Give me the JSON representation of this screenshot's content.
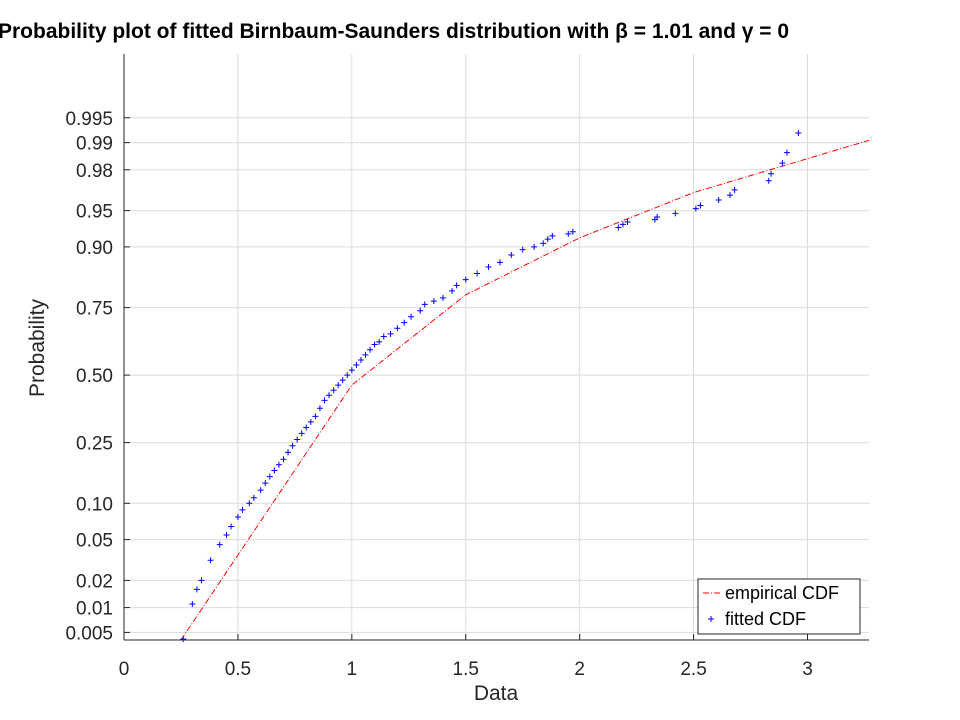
{
  "chart_data": {
    "type": "scatter",
    "title": "Probability plot of fitted Birnbaum-Saunders distribution with β = 1.01 and γ = 0",
    "xlabel": "Data",
    "ylabel": "Probability",
    "xlim": [
      0,
      3.27
    ],
    "x_ticks": [
      0,
      0.5,
      1,
      1.5,
      2,
      2.5,
      3
    ],
    "x_tick_labels": [
      "0",
      "0.5",
      "1",
      "1.5",
      "2",
      "2.5",
      "3"
    ],
    "y_scale": "normal-probability",
    "y_ticks": [
      0.005,
      0.01,
      0.02,
      0.05,
      0.1,
      0.25,
      0.5,
      0.75,
      0.9,
      0.95,
      0.98,
      0.99,
      0.995
    ],
    "y_tick_labels": [
      "0.005",
      "0.01",
      "0.02",
      "0.05",
      "0.10",
      "0.25",
      "0.50",
      "0.75",
      "0.90",
      "0.95",
      "0.98",
      "0.99",
      "0.995"
    ],
    "grid": true,
    "legend_position": "bottom-right",
    "series": [
      {
        "name": "empirical CDF",
        "style": "dash-dot line",
        "color": "#ff0000",
        "x": [
          0.25,
          1.0,
          1.5,
          2.0,
          2.5,
          3.27
        ],
        "y": [
          0.004,
          0.46,
          0.789,
          0.915,
          0.966,
          0.9906
        ]
      },
      {
        "name": "fitted CDF",
        "style": "plus markers",
        "color": "#0000ff",
        "x": [
          0.26,
          0.3,
          0.32,
          0.34,
          0.38,
          0.42,
          0.45,
          0.47,
          0.5,
          0.52,
          0.55,
          0.57,
          0.6,
          0.62,
          0.64,
          0.66,
          0.68,
          0.7,
          0.72,
          0.74,
          0.76,
          0.78,
          0.8,
          0.82,
          0.84,
          0.86,
          0.88,
          0.9,
          0.92,
          0.94,
          0.96,
          0.98,
          1.0,
          1.02,
          1.04,
          1.06,
          1.08,
          1.1,
          1.12,
          1.14,
          1.17,
          1.2,
          1.23,
          1.26,
          1.3,
          1.32,
          1.36,
          1.4,
          1.44,
          1.46,
          1.5,
          1.55,
          1.6,
          1.65,
          1.7,
          1.75,
          1.8,
          1.84,
          1.86,
          1.88,
          1.95,
          1.97,
          2.17,
          2.19,
          2.21,
          2.33,
          2.34,
          2.42,
          2.51,
          2.53,
          2.61,
          2.66,
          2.68,
          2.83,
          2.84,
          2.89,
          2.91,
          2.96
        ],
        "y": [
          0.0041,
          0.011,
          0.016,
          0.02,
          0.032,
          0.045,
          0.055,
          0.065,
          0.078,
          0.089,
          0.1,
          0.11,
          0.125,
          0.14,
          0.155,
          0.17,
          0.185,
          0.2,
          0.22,
          0.24,
          0.26,
          0.28,
          0.3,
          0.32,
          0.34,
          0.37,
          0.4,
          0.42,
          0.44,
          0.46,
          0.48,
          0.5,
          0.52,
          0.54,
          0.56,
          0.58,
          0.6,
          0.62,
          0.63,
          0.65,
          0.66,
          0.68,
          0.7,
          0.72,
          0.74,
          0.76,
          0.77,
          0.78,
          0.8,
          0.815,
          0.83,
          0.845,
          0.86,
          0.87,
          0.885,
          0.895,
          0.9,
          0.906,
          0.913,
          0.918,
          0.921,
          0.924,
          0.93,
          0.934,
          0.937,
          0.94,
          0.943,
          0.947,
          0.952,
          0.955,
          0.96,
          0.964,
          0.968,
          0.974,
          0.978,
          0.983,
          0.987,
          0.9923
        ]
      }
    ]
  }
}
